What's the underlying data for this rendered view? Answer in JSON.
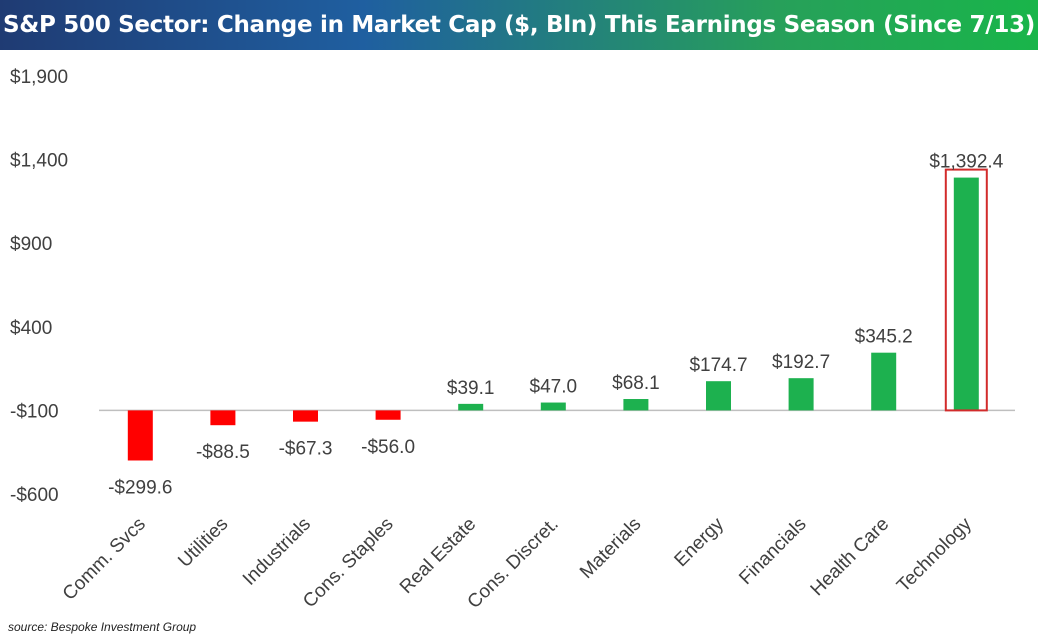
{
  "title": "S&P 500 Sector: Change in Market Cap ($, Bln) This Earnings Season (Since 7/13)",
  "source": "source: Bespoke Investment Group",
  "colors": {
    "positive": "#1db14f",
    "negative": "#ff0000",
    "highlight_border": "#d22b2b",
    "axis": "#bfbfbf",
    "text": "#404040"
  },
  "chart_data": {
    "type": "bar",
    "title": "S&P 500 Sector: Change in Market Cap ($, Bln) This Earnings Season (Since 7/13)",
    "xlabel": "",
    "ylabel": "",
    "categories": [
      "Comm. Svcs",
      "Utilities",
      "Industrials",
      "Cons. Staples",
      "Real Estate",
      "Cons. Discret.",
      "Materials",
      "Energy",
      "Financials",
      "Health Care",
      "Technology"
    ],
    "values": [
      -299.6,
      -88.5,
      -67.3,
      -56.0,
      39.1,
      47.0,
      68.1,
      174.7,
      192.7,
      345.2,
      1392.4
    ],
    "data_labels": [
      "-$299.6",
      "-$88.5",
      "-$67.3",
      "-$56.0",
      "$39.1",
      "$47.0",
      "$68.1",
      "$174.7",
      "$192.7",
      "$345.2",
      "$1,392.4"
    ],
    "y_ticks": [
      1900,
      1400,
      900,
      400,
      -100,
      -600
    ],
    "y_tick_labels": [
      "$1,900",
      "$1,400",
      "$900",
      "$400",
      "-$100",
      "-$600"
    ],
    "ylim": [
      -600,
      1900
    ],
    "highlighted_category": "Technology",
    "grid": false,
    "legend": "none"
  }
}
